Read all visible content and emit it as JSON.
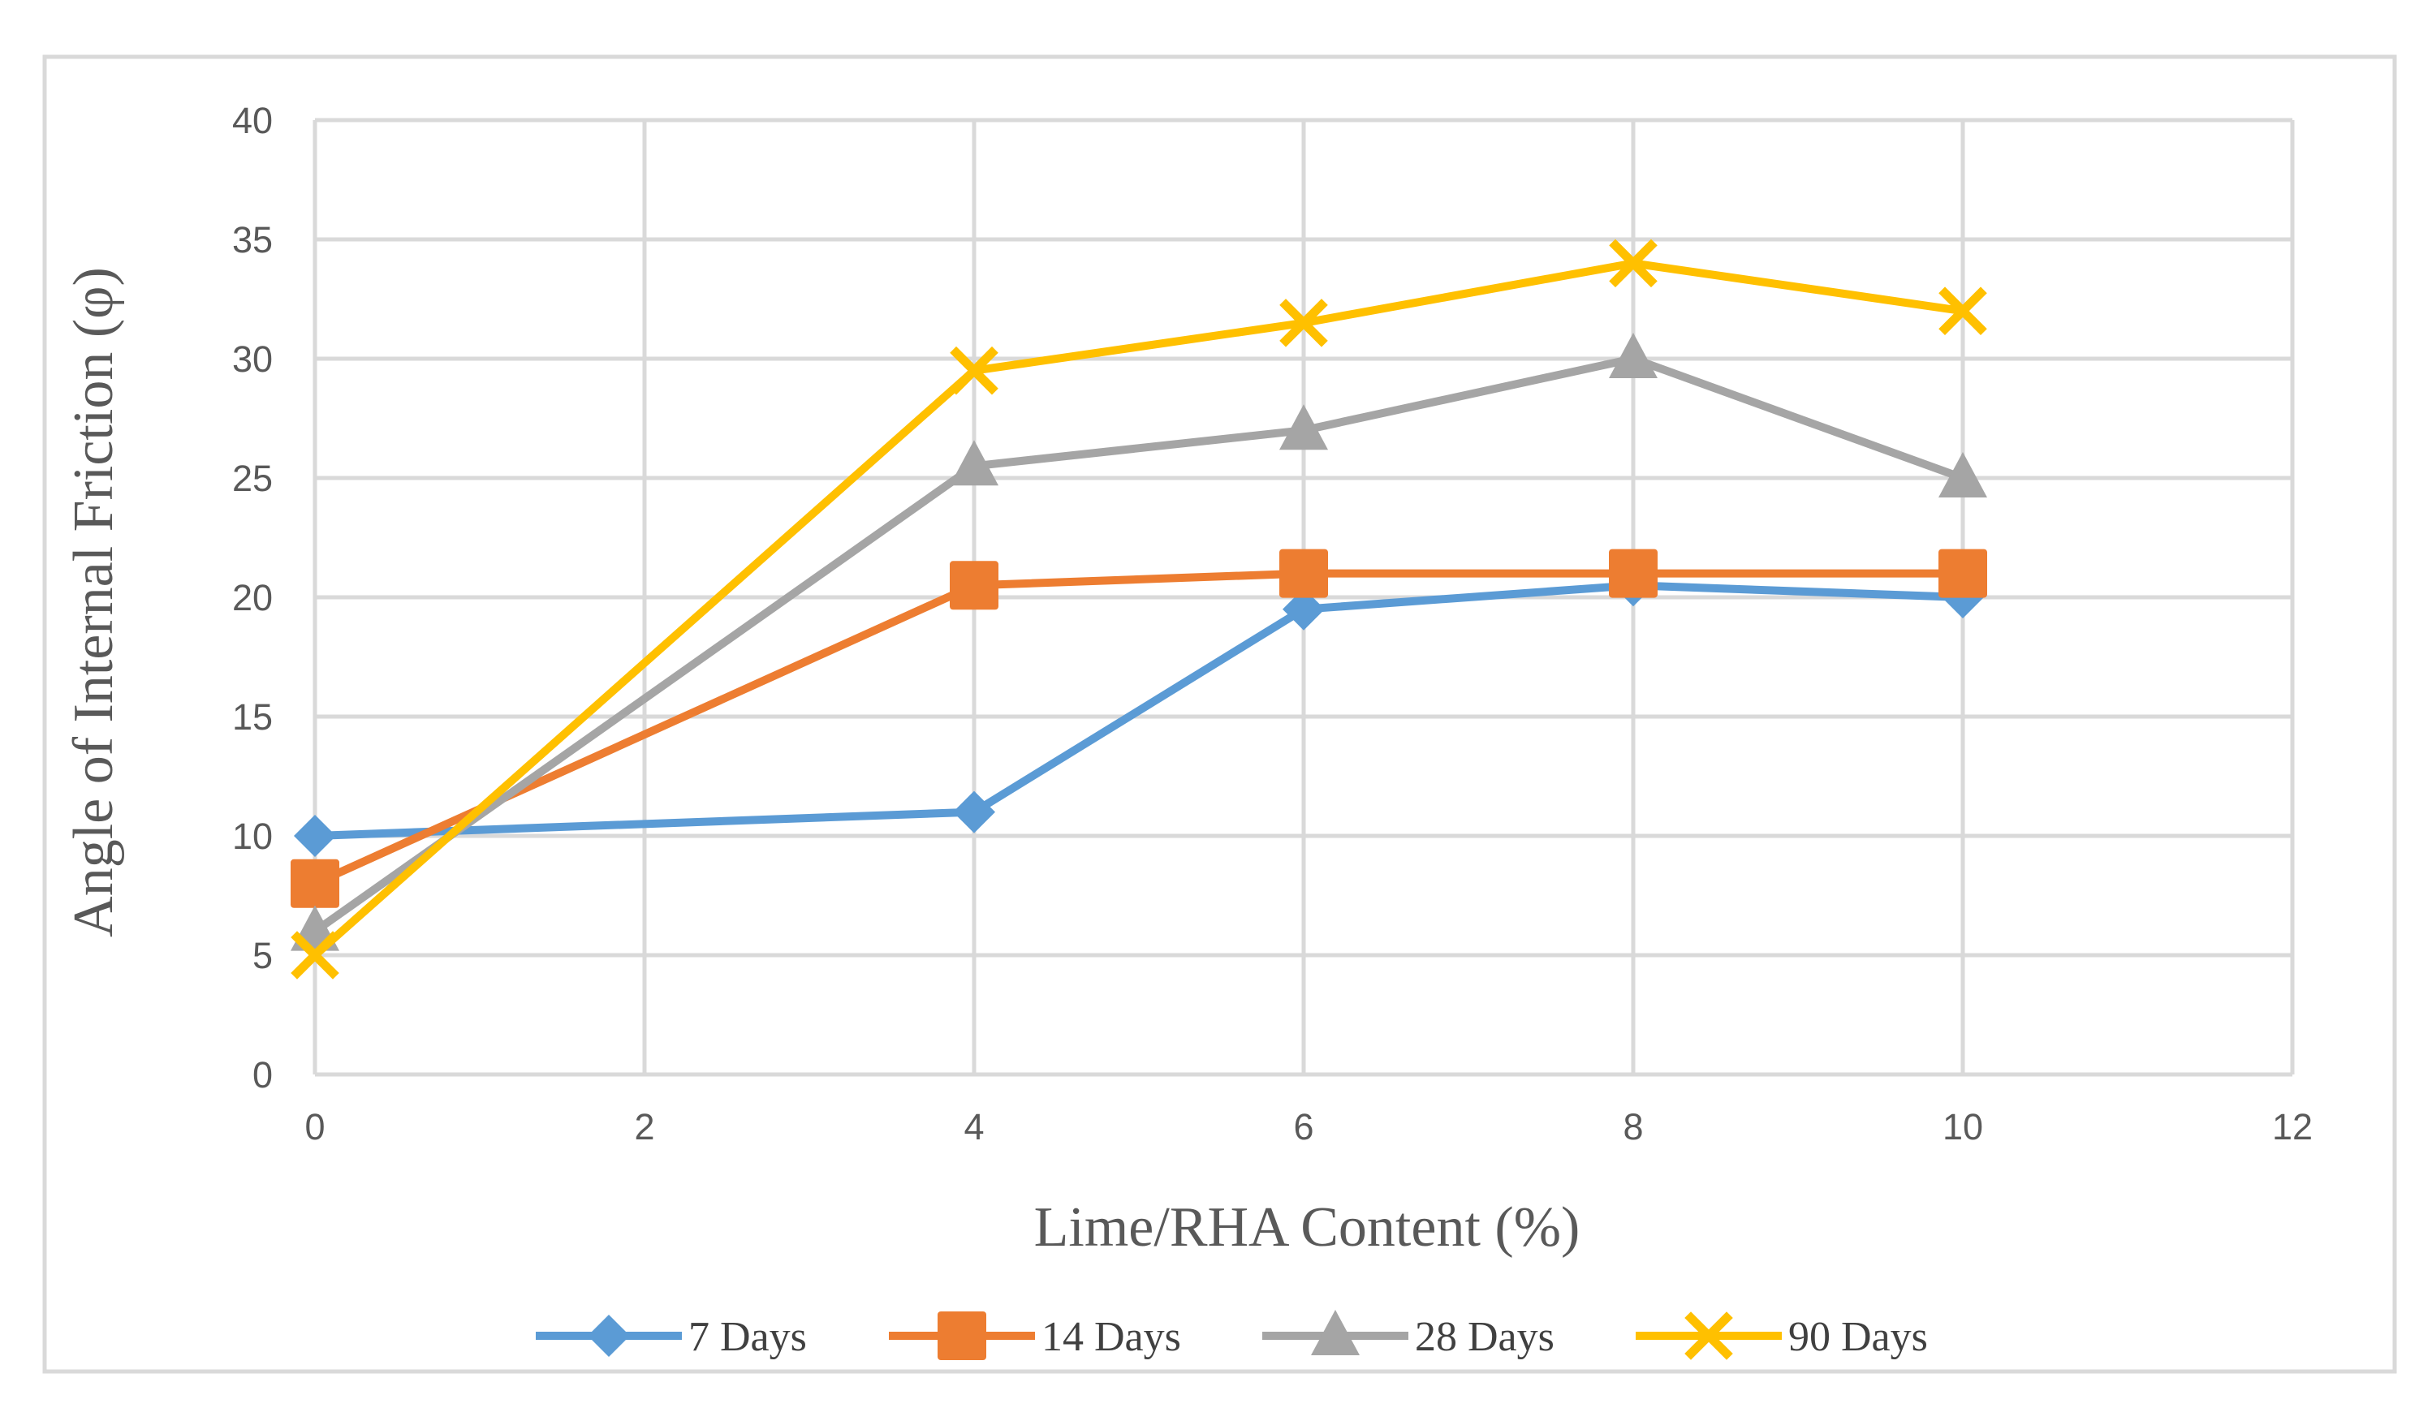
{
  "chart_data": {
    "type": "line",
    "title": "",
    "xlabel": "Lime/RHA Content (%)",
    "ylabel": "Angle of Internal Friction (φ)",
    "xlim": [
      0,
      12
    ],
    "ylim": [
      0,
      40
    ],
    "xticks": [
      0,
      2,
      4,
      6,
      8,
      10,
      12
    ],
    "yticks": [
      0,
      5,
      10,
      15,
      20,
      25,
      30,
      35,
      40
    ],
    "x": [
      0,
      4,
      6,
      8,
      10
    ],
    "grid": true,
    "legend_position": "bottom",
    "series": [
      {
        "name": "7 Days",
        "values": [
          10,
          11,
          19.5,
          20.5,
          20
        ],
        "color": "#5b9bd5",
        "marker": "diamond"
      },
      {
        "name": "14 Days",
        "values": [
          8,
          20.5,
          21,
          21,
          21
        ],
        "color": "#ed7d31",
        "marker": "square"
      },
      {
        "name": "28 Days",
        "values": [
          6,
          25.5,
          27,
          30,
          25
        ],
        "color": "#a5a5a5",
        "marker": "triangle"
      },
      {
        "name": "90 Days",
        "values": [
          5,
          29.5,
          31.5,
          34,
          32
        ],
        "color": "#ffc000",
        "marker": "x"
      }
    ]
  }
}
